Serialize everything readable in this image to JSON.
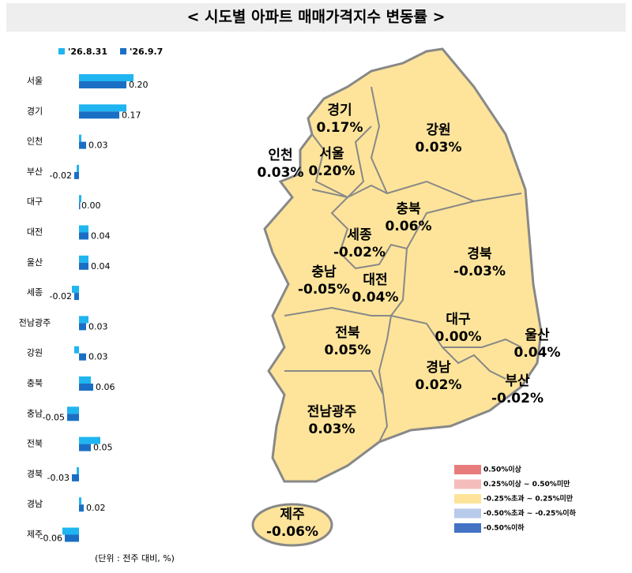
{
  "chart_data": {
    "type": "bar",
    "orientation": "horizontal",
    "title": "< 시도별 아파트 매매가격지수 변동률 >",
    "categories": [
      "서울",
      "경기",
      "인천",
      "부산",
      "대구",
      "대전",
      "울산",
      "세종",
      "전남광주",
      "강원",
      "충북",
      "충남",
      "전북",
      "경북",
      "경남",
      "제주"
    ],
    "series": [
      {
        "name": "'26.8.31",
        "color": "#1fb5f0",
        "values": [
          0.23,
          0.2,
          0.01,
          -0.01,
          0.01,
          0.04,
          0.04,
          -0.03,
          0.04,
          -0.02,
          0.05,
          -0.05,
          0.09,
          -0.01,
          0.01,
          -0.07
        ]
      },
      {
        "name": "'26.9.7",
        "color": "#1a6fc4",
        "values": [
          0.2,
          0.17,
          0.03,
          -0.02,
          0,
          0.04,
          0.04,
          -0.02,
          0.03,
          0.03,
          0.06,
          -0.05,
          0.05,
          -0.03,
          0.02,
          -0.06
        ],
        "value_labels": [
          "0.20",
          "0.17",
          "0.03",
          "-0.02",
          "0.00",
          "0.04",
          "0.04",
          "-0.02",
          "0.03",
          "0.03",
          "0.06",
          "-0.05",
          "0.05",
          "-0.03",
          "0.02",
          "-0.06"
        ]
      }
    ],
    "xlim": [
      -0.08,
      0.24
    ],
    "note": "(단위 : 전주 대비, %)"
  },
  "map": {
    "regions": [
      {
        "name": "경기",
        "value_label": "0.17%"
      },
      {
        "name": "강원",
        "value_label": "0.03%"
      },
      {
        "name": "인천",
        "value_label": "0.03%"
      },
      {
        "name": "서울",
        "value_label": "0.20%"
      },
      {
        "name": "충북",
        "value_label": "0.06%"
      },
      {
        "name": "세종",
        "value_label": "-0.02%"
      },
      {
        "name": "경북",
        "value_label": "-0.03%"
      },
      {
        "name": "충남",
        "value_label": "-0.05%"
      },
      {
        "name": "대전",
        "value_label": "0.04%"
      },
      {
        "name": "대구",
        "value_label": "0.00%"
      },
      {
        "name": "울산",
        "value_label": "0.04%"
      },
      {
        "name": "전북",
        "value_label": "0.05%"
      },
      {
        "name": "경남",
        "value_label": "0.02%"
      },
      {
        "name": "부산",
        "value_label": "-0.02%"
      },
      {
        "name": "전남광주",
        "value_label": "0.03%"
      },
      {
        "name": "제주",
        "value_label": "-0.06%"
      }
    ],
    "legend": [
      {
        "label": "0.50%이상",
        "color": "#e87c7c"
      },
      {
        "label": "0.25%이상 ~ 0.50%미만",
        "color": "#f5bcbc"
      },
      {
        "label": "-0.25%초과 ~ 0.25%미만",
        "color": "#fde49a"
      },
      {
        "label": "-0.50%초과 ~ -0.25%이하",
        "color": "#b8cbea"
      },
      {
        "label": "-0.50%이하",
        "color": "#4472c4"
      }
    ]
  }
}
